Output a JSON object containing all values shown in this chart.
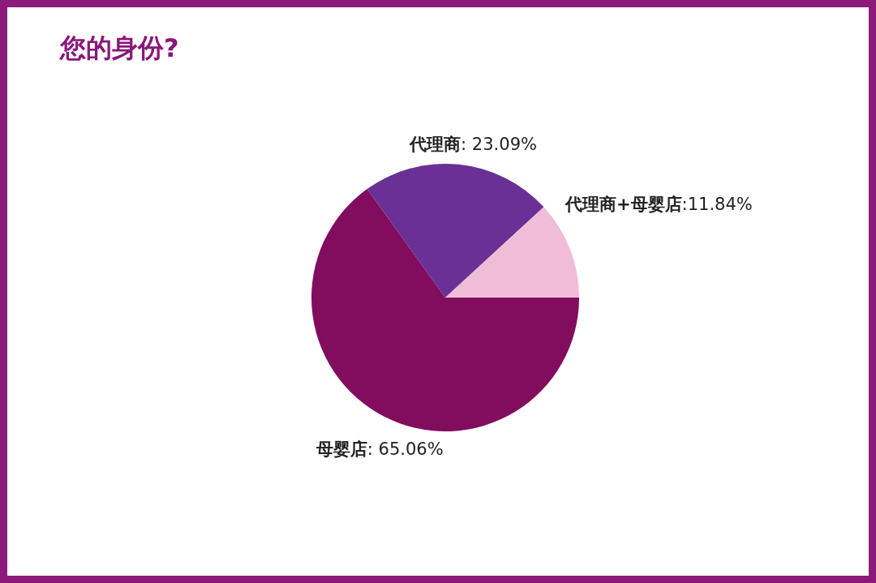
{
  "chart_data": {
    "type": "pie",
    "title": "您的身份?",
    "categories": [
      "母婴店",
      "代理商",
      "代理商+母婴店"
    ],
    "values": [
      65.06,
      23.09,
      11.84
    ],
    "value_labels": [
      ": 65.06%",
      ": 23.09%",
      ":11.84%"
    ],
    "colors": [
      "#820c5e",
      "#6a3096",
      "#f0bcd8"
    ]
  }
}
